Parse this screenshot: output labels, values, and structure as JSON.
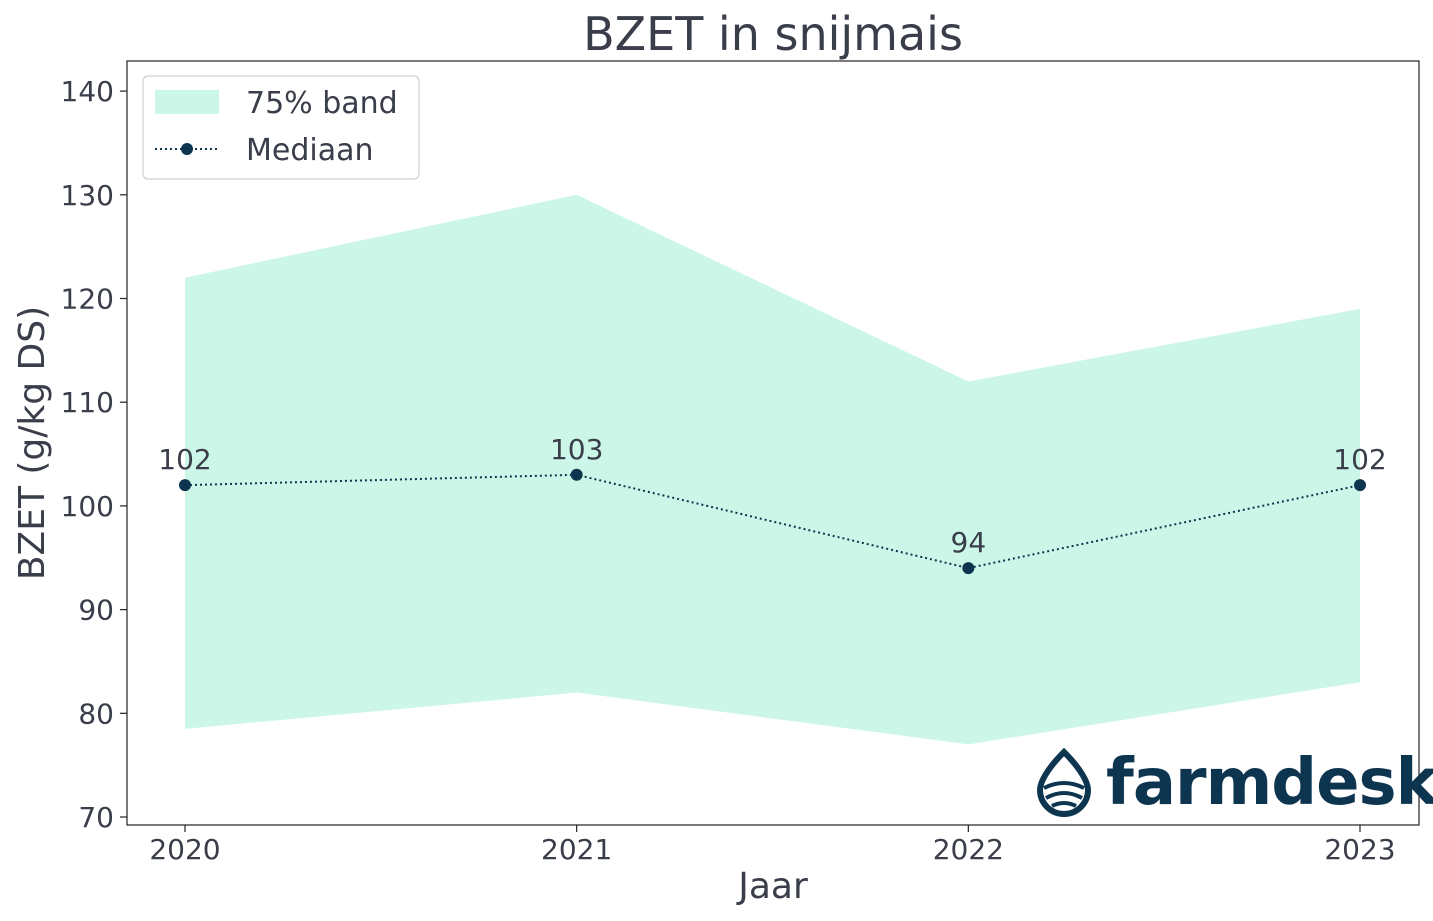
{
  "chart_data": {
    "type": "line",
    "title": "BZET in snijmais",
    "xlabel": "Jaar",
    "ylabel": "BZET (g/kg DS)",
    "categories": [
      "2020",
      "2021",
      "2022",
      "2023"
    ],
    "ylim": [
      69,
      143
    ],
    "yticks": [
      70,
      80,
      90,
      100,
      110,
      120,
      130,
      140
    ],
    "series": [
      {
        "name": "Mediaan",
        "values": [
          102,
          103,
          94,
          102
        ],
        "labels": [
          "102",
          "103",
          "94",
          "102"
        ]
      }
    ],
    "band": {
      "name": "75% band",
      "lower": [
        78.5,
        82,
        77,
        83
      ],
      "upper": [
        122,
        130,
        112,
        119
      ]
    },
    "legend_position": "top-left",
    "grid": false
  },
  "colors": {
    "band": "#ccf7e8",
    "median": "#0d3550",
    "text": "#3a3d4a",
    "logo": "#0d3550"
  },
  "logo": {
    "text": "farmdesk",
    "icon": "water-drop-icon"
  }
}
